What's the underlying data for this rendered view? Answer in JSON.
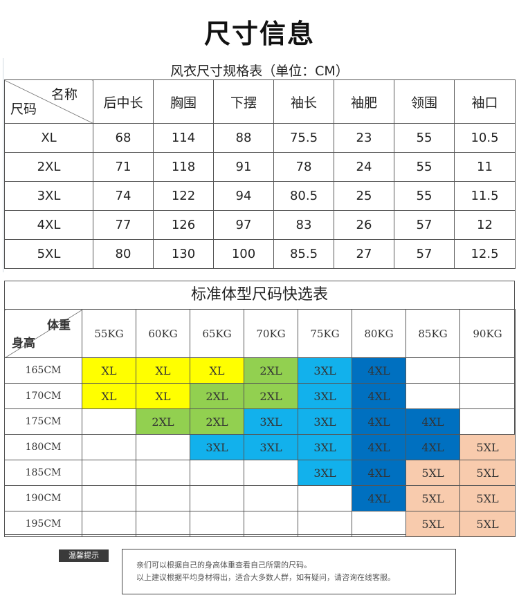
{
  "title": "尺寸信息",
  "size_table": {
    "caption": "风衣尺寸规格表（单位：CM）",
    "corner_top": "名称",
    "corner_bottom": "尺码",
    "columns": [
      "后中长",
      "胸围",
      "下摆",
      "袖长",
      "袖肥",
      "领围",
      "袖口"
    ],
    "rows": [
      {
        "size": "XL",
        "values": [
          "68",
          "114",
          "88",
          "75.5",
          "23",
          "55",
          "10.5"
        ]
      },
      {
        "size": "2XL",
        "values": [
          "71",
          "118",
          "91",
          "78",
          "24",
          "55",
          "11"
        ]
      },
      {
        "size": "3XL",
        "values": [
          "74",
          "122",
          "94",
          "80.5",
          "25",
          "55",
          "11.5"
        ]
      },
      {
        "size": "4XL",
        "values": [
          "77",
          "126",
          "97",
          "83",
          "26",
          "57",
          "12"
        ]
      },
      {
        "size": "5XL",
        "values": [
          "80",
          "130",
          "100",
          "85.5",
          "27",
          "57",
          "12.5"
        ]
      }
    ]
  },
  "quick_table": {
    "caption": "标准体型尺码快选表",
    "corner_top": "体重",
    "corner_bottom": "身高",
    "weights": [
      "55KG",
      "60KG",
      "65KG",
      "70KG",
      "75KG",
      "80KG",
      "85KG",
      "90KG"
    ],
    "size_colors": {
      "XL": "#ffff00",
      "2XL": "#92d050",
      "3XL": "#12b1ec",
      "4XL": "#0070c0",
      "5XL": "#f8cbad"
    },
    "rows": [
      {
        "height": "165CM",
        "cells": [
          "XL",
          "XL",
          "XL",
          "2XL",
          "3XL",
          "4XL",
          "",
          ""
        ]
      },
      {
        "height": "170CM",
        "cells": [
          "XL",
          "XL",
          "2XL",
          "2XL",
          "3XL",
          "4XL",
          "",
          ""
        ]
      },
      {
        "height": "175CM",
        "cells": [
          "",
          "2XL",
          "2XL",
          "3XL",
          "3XL",
          "4XL",
          "4XL",
          ""
        ]
      },
      {
        "height": "180CM",
        "cells": [
          "",
          "",
          "3XL",
          "3XL",
          "3XL",
          "4XL",
          "4XL",
          "5XL"
        ]
      },
      {
        "height": "185CM",
        "cells": [
          "",
          "",
          "",
          "",
          "3XL",
          "4XL",
          "5XL",
          "5XL"
        ]
      },
      {
        "height": "190CM",
        "cells": [
          "",
          "",
          "",
          "",
          "",
          "4XL",
          "5XL",
          "5XL"
        ]
      },
      {
        "height": "195CM",
        "cells": [
          "",
          "",
          "",
          "",
          "",
          "",
          "5XL",
          "5XL"
        ]
      }
    ]
  },
  "notice": {
    "badge": "温馨提示",
    "line1": "亲们可以根据自己的身高体重查看自己所需的尺码。",
    "line2": "以上建议根据平均身材得出，适合大多数人群，如有疑问，请咨询在线客服。"
  }
}
